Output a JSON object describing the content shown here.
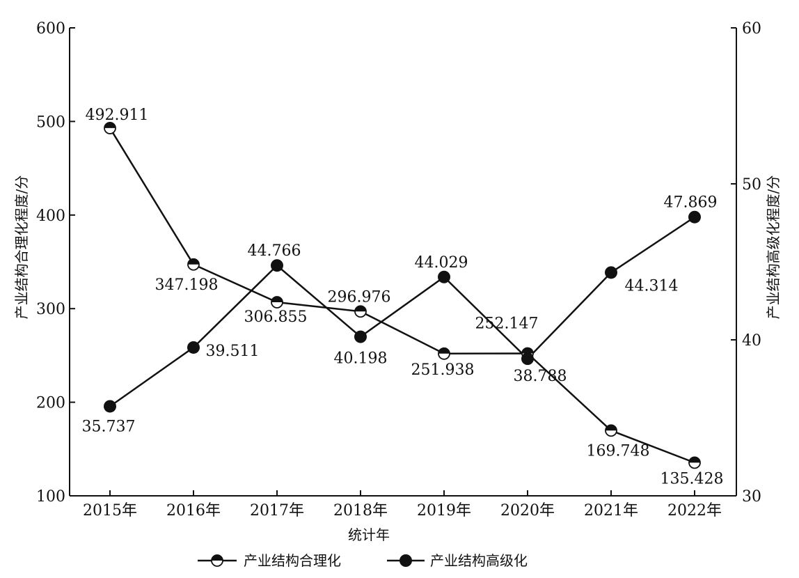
{
  "chart_data": {
    "type": "line",
    "categories": [
      "2015年",
      "2016年",
      "2017年",
      "2018年",
      "2019年",
      "2020年",
      "2021年",
      "2022年"
    ],
    "xlabel": "统计年",
    "ylabel_left": "产业结构合理化程度/分",
    "ylabel_right": "产业结构高级化程度/分",
    "ylim_left": [
      100,
      600
    ],
    "yticks_left": [
      100,
      200,
      300,
      400,
      500,
      600
    ],
    "ylim_right": [
      30,
      60
    ],
    "yticks_right": [
      30,
      40,
      50,
      60
    ],
    "grid": false,
    "legend_position": "bottom",
    "series": [
      {
        "name": "产业结构合理化",
        "axis": "left",
        "marker": "half-filled-circle",
        "values": [
          492.911,
          347.198,
          306.855,
          296.976,
          251.938,
          252.147,
          169.748,
          135.428
        ],
        "labels": [
          "492.911",
          "347.198",
          "306.855",
          "296.976",
          "251.938",
          "252.147",
          "169.748",
          "135.428"
        ]
      },
      {
        "name": "产业结构高级化",
        "axis": "right",
        "marker": "filled-circle",
        "values": [
          35.737,
          39.511,
          44.766,
          40.198,
          44.029,
          38.788,
          44.314,
          47.869
        ],
        "labels": [
          "35.737",
          "39.511",
          "44.766",
          "40.198",
          "44.029",
          "38.788",
          "44.314",
          "47.869"
        ]
      }
    ]
  }
}
